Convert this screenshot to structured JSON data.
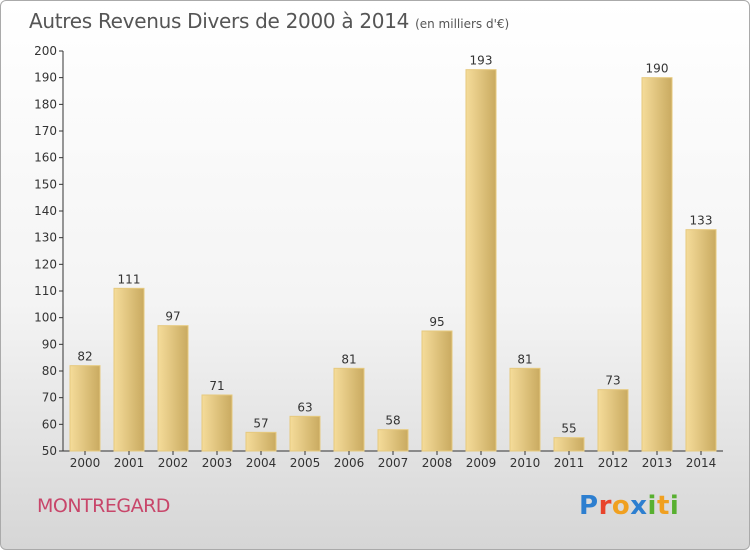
{
  "chart_data": {
    "type": "bar",
    "title": "Autres Revenus Divers de 2000 à 2014",
    "subtitle": "(en milliers d'€)",
    "categories": [
      "2000",
      "2001",
      "2002",
      "2003",
      "2004",
      "2005",
      "2006",
      "2007",
      "2008",
      "2009",
      "2010",
      "2011",
      "2012",
      "2013",
      "2014"
    ],
    "values": [
      82,
      111,
      97,
      71,
      57,
      63,
      81,
      58,
      95,
      193,
      81,
      55,
      73,
      190,
      133
    ],
    "ylim": [
      50,
      200
    ],
    "yticks": [
      50,
      60,
      70,
      80,
      90,
      100,
      110,
      120,
      130,
      140,
      150,
      160,
      170,
      180,
      190,
      200
    ],
    "grid": false,
    "colors": {
      "bar_light": "#f5dc9a",
      "bar_dark": "#c9aa60",
      "bar_edge": "#e6c97e",
      "axis": "#333333"
    }
  },
  "place_name": "MONTREGARD",
  "brand": {
    "text": "Proxiti",
    "letters": [
      {
        "ch": "P",
        "color": "#2d7fd0"
      },
      {
        "ch": "r",
        "color": "#e8442c"
      },
      {
        "ch": "o",
        "color": "#f0a020"
      },
      {
        "ch": "x",
        "color": "#2d7fd0"
      },
      {
        "ch": "i",
        "color": "#58b030"
      },
      {
        "ch": "t",
        "color": "#f0a020"
      },
      {
        "ch": "i",
        "color": "#58b030"
      }
    ]
  }
}
